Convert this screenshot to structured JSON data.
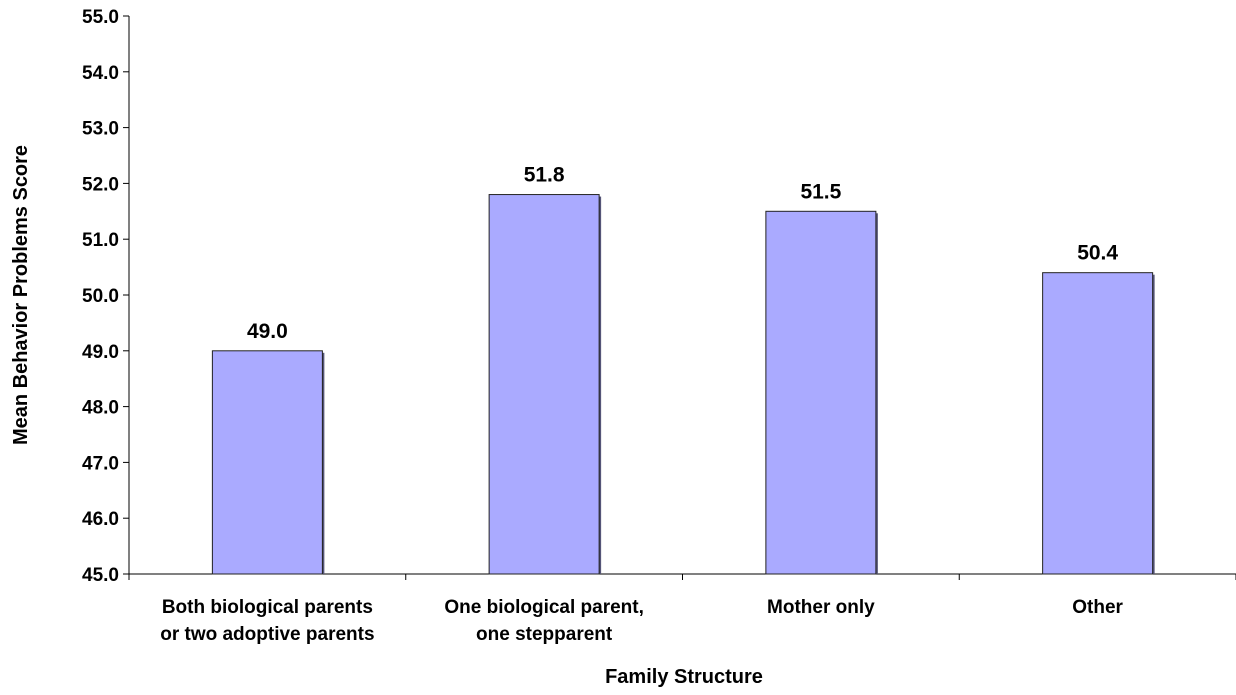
{
  "chart_data": {
    "type": "bar",
    "title": "",
    "xlabel": "Family Structure",
    "ylabel": "Mean Behavior Problems Score",
    "ylim": [
      45.0,
      55.0
    ],
    "yticks": [
      "45.0",
      "46.0",
      "47.0",
      "48.0",
      "49.0",
      "50.0",
      "51.0",
      "52.0",
      "53.0",
      "54.0",
      "55.0"
    ],
    "categories": [
      [
        "Both biological parents",
        "or two adoptive parents"
      ],
      [
        "One biological parent,",
        "one stepparent"
      ],
      [
        "Mother only"
      ],
      [
        "Other"
      ]
    ],
    "values": [
      49.0,
      51.8,
      51.5,
      50.4
    ],
    "data_labels": [
      "49.0",
      "51.8",
      "51.5",
      "50.4"
    ],
    "grid": false,
    "legend": "none",
    "bar_color": "#aaaaff"
  }
}
